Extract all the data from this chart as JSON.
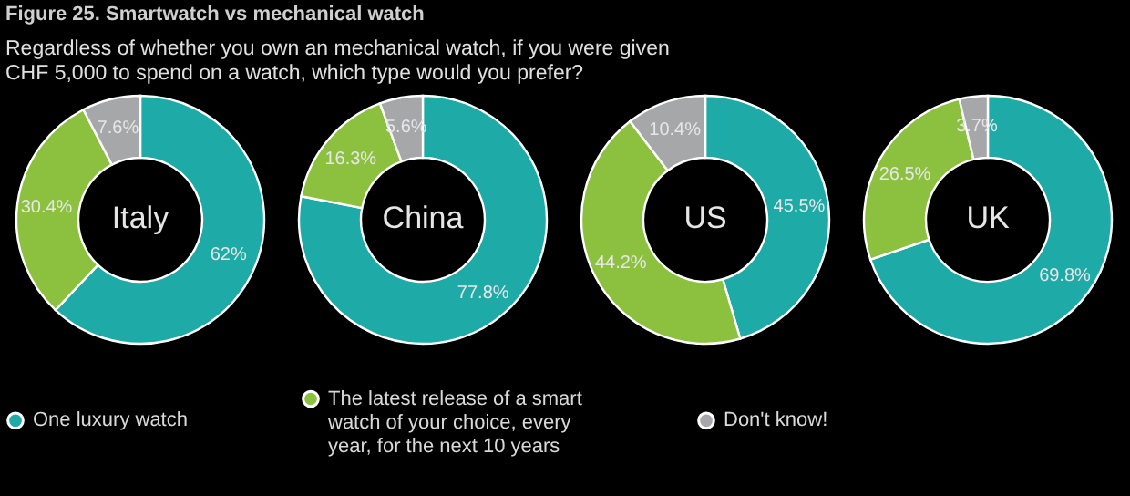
{
  "chart_data": [
    {
      "type": "donut",
      "title": "Figure 25. Smartwatch vs mechanical watch",
      "subtitle": "Regardless of whether you own an mechanical watch, if you were given CHF 5,000 to spend on a watch, which type would you prefer?",
      "annotations": [
        "Italy"
      ],
      "categories": [
        "One luxury watch",
        "The latest release of a smart watch of your choice, every year, for the next 10 years",
        "Don't know!"
      ],
      "values": [
        62,
        30.4,
        7.6
      ],
      "value_labels": [
        "62%",
        "30.4%",
        "7.6%"
      ],
      "colors": [
        "#1eaaa6",
        "#8cc13f",
        "#a6a7a9"
      ],
      "legend": "bottom"
    },
    {
      "type": "donut",
      "annotations": [
        "China"
      ],
      "categories": [
        null,
        null,
        null
      ],
      "values": [
        77.8,
        16.3,
        5.6
      ],
      "value_labels": [
        "77.8%",
        "16.3%",
        "5.6%"
      ],
      "colors": [
        "#1eaaa6",
        "#8cc13f",
        "#a6a7a9"
      ]
    },
    {
      "type": "donut",
      "annotations": [
        "US"
      ],
      "categories": [
        null,
        null,
        null
      ],
      "values": [
        45.5,
        44.2,
        10.4
      ],
      "value_labels": [
        "45.5%",
        "44.2%",
        "10.4%"
      ],
      "colors": [
        "#1eaaa6",
        "#8cc13f",
        "#a6a7a9"
      ]
    },
    {
      "type": "donut",
      "annotations": [
        "UK"
      ],
      "categories": [
        null,
        null,
        null
      ],
      "values": [
        69.8,
        26.5,
        3.7
      ],
      "value_labels": [
        "69.8%",
        "26.5%",
        "3.7%"
      ],
      "colors": [
        "#1eaaa6",
        "#8cc13f",
        "#a6a7a9"
      ]
    }
  ]
}
